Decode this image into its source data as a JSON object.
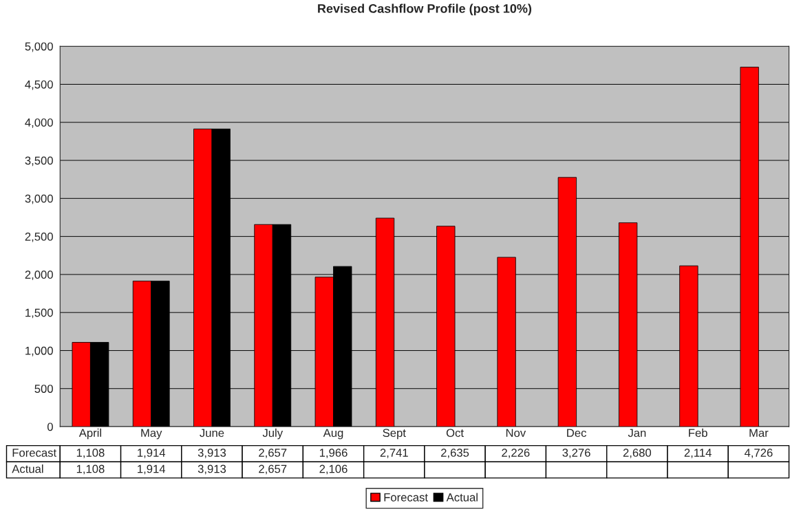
{
  "chart_data": {
    "type": "bar",
    "title": "Revised Cashflow Profile (post 10%)",
    "categories": [
      "April",
      "May",
      "June",
      "July",
      "Aug",
      "Sept",
      "Oct",
      "Nov",
      "Dec",
      "Jan",
      "Feb",
      "Mar"
    ],
    "series": [
      {
        "name": "Forecast",
        "color": "#ff0000",
        "values": [
          1108,
          1914,
          3913,
          2657,
          1966,
          2741,
          2635,
          2226,
          3276,
          2680,
          2114,
          4726
        ],
        "value_labels": [
          "1,108",
          "1,914",
          "3,913",
          "2,657",
          "1,966",
          "2,741",
          "2,635",
          "2,226",
          "3,276",
          "2,680",
          "2,114",
          "4,726"
        ]
      },
      {
        "name": "Actual",
        "color": "#000000",
        "values": [
          1108,
          1914,
          3913,
          2657,
          2106,
          null,
          null,
          null,
          null,
          null,
          null,
          null
        ],
        "value_labels": [
          "1,108",
          "1,914",
          "3,913",
          "2,657",
          "2,106",
          null,
          null,
          null,
          null,
          null,
          null,
          null
        ]
      }
    ],
    "ylim": [
      0,
      5000
    ],
    "yticks": [
      0,
      {
        "value": 500,
        "label": "500"
      },
      {
        "value": 1000,
        "label": "1,000"
      },
      {
        "value": 1500,
        "label": "1,500"
      },
      {
        "value": 2000,
        "label": "2,000"
      },
      {
        "value": 2500,
        "label": "2,500"
      },
      {
        "value": 3000,
        "label": "3,000"
      },
      {
        "value": 3500,
        "label": "3,500"
      },
      {
        "value": 4000,
        "label": "4,000"
      },
      {
        "value": 4500,
        "label": "4,500"
      },
      {
        "value": 5000,
        "label": "5,000"
      }
    ],
    "grid": "y",
    "legend": "bottom"
  }
}
